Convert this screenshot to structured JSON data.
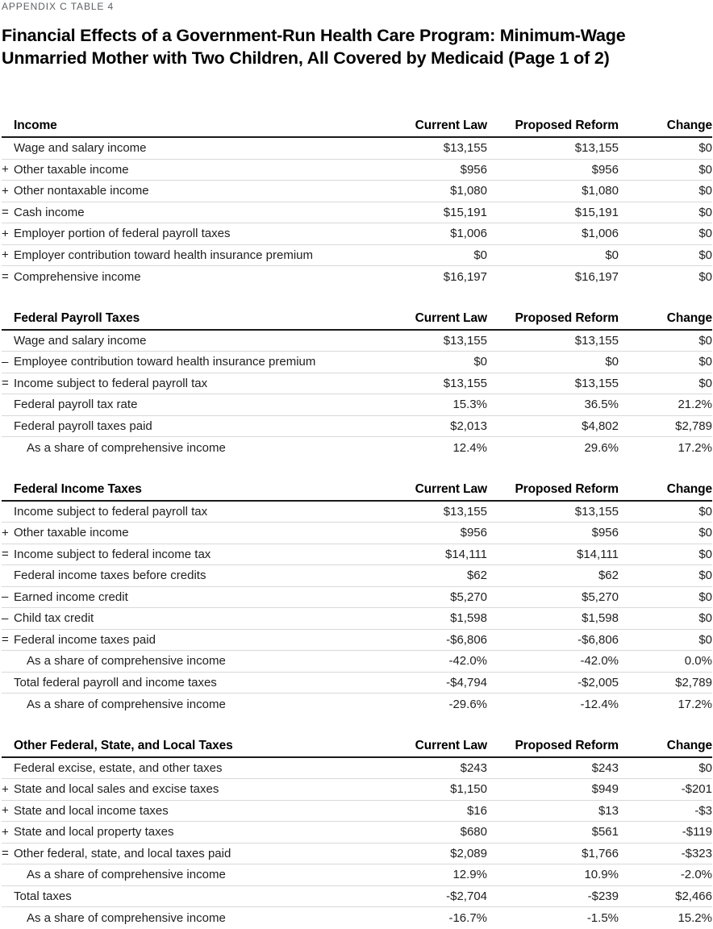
{
  "eyebrow": "APPENDIX C TABLE 4",
  "title_line1": "Financial Effects of a Government-Run Health Care Program: Minimum-Wage",
  "title_line2": "Unmarried Mother with Two Children, All Covered by Medicaid (Page 1 of 2)",
  "columns": [
    "Current Law",
    "Proposed Reform",
    "Change"
  ],
  "sections": [
    {
      "header": "Income",
      "rows": [
        {
          "prefix": "",
          "indent": 1,
          "label": "Wage and salary income",
          "values": [
            "$13,155",
            "$13,155",
            "$0"
          ]
        },
        {
          "prefix": "+",
          "indent": 1,
          "label": "Other taxable income",
          "values": [
            "$956",
            "$956",
            "$0"
          ]
        },
        {
          "prefix": "+",
          "indent": 1,
          "label": "Other nontaxable income",
          "values": [
            "$1,080",
            "$1,080",
            "$0"
          ]
        },
        {
          "prefix": "=",
          "indent": 1,
          "label": "Cash income",
          "values": [
            "$15,191",
            "$15,191",
            "$0"
          ]
        },
        {
          "prefix": "+",
          "indent": 1,
          "label": "Employer portion of federal payroll taxes",
          "values": [
            "$1,006",
            "$1,006",
            "$0"
          ]
        },
        {
          "prefix": "+",
          "indent": 1,
          "label": "Employer contribution toward health insurance premium",
          "values": [
            "$0",
            "$0",
            "$0"
          ]
        },
        {
          "prefix": "=",
          "indent": 1,
          "label": "Comprehensive income",
          "values": [
            "$16,197",
            "$16,197",
            "$0"
          ]
        }
      ]
    },
    {
      "header": "Federal Payroll Taxes",
      "rows": [
        {
          "prefix": "",
          "indent": 1,
          "label": "Wage and salary income",
          "values": [
            "$13,155",
            "$13,155",
            "$0"
          ]
        },
        {
          "prefix": "–",
          "indent": 1,
          "label": "Employee contribution toward health insurance premium",
          "values": [
            "$0",
            "$0",
            "$0"
          ]
        },
        {
          "prefix": "=",
          "indent": 1,
          "label": "Income subject to federal payroll tax",
          "values": [
            "$13,155",
            "$13,155",
            "$0"
          ]
        },
        {
          "prefix": "",
          "indent": 1,
          "label": "Federal payroll tax rate",
          "values": [
            "15.3%",
            "36.5%",
            "21.2%"
          ]
        },
        {
          "prefix": "",
          "indent": 1,
          "label": "Federal payroll taxes paid",
          "values": [
            "$2,013",
            "$4,802",
            "$2,789"
          ]
        },
        {
          "prefix": "",
          "indent": 2,
          "label": "As a share of comprehensive income",
          "values": [
            "12.4%",
            "29.6%",
            "17.2%"
          ]
        }
      ]
    },
    {
      "header": "Federal Income Taxes",
      "rows": [
        {
          "prefix": "",
          "indent": 1,
          "label": "Income subject to federal payroll tax",
          "values": [
            "$13,155",
            "$13,155",
            "$0"
          ]
        },
        {
          "prefix": "+",
          "indent": 1,
          "label": "Other taxable income",
          "values": [
            "$956",
            "$956",
            "$0"
          ]
        },
        {
          "prefix": "=",
          "indent": 1,
          "label": "Income subject to federal income tax",
          "values": [
            "$14,111",
            "$14,111",
            "$0"
          ]
        },
        {
          "prefix": "",
          "indent": 1,
          "label": "Federal income taxes before credits",
          "values": [
            "$62",
            "$62",
            "$0"
          ]
        },
        {
          "prefix": "–",
          "indent": 1,
          "label": "Earned income credit",
          "values": [
            "$5,270",
            "$5,270",
            "$0"
          ]
        },
        {
          "prefix": "–",
          "indent": 1,
          "label": "Child tax credit",
          "values": [
            "$1,598",
            "$1,598",
            "$0"
          ]
        },
        {
          "prefix": "=",
          "indent": 1,
          "label": "Federal income taxes paid",
          "values": [
            "-$6,806",
            "-$6,806",
            "$0"
          ]
        },
        {
          "prefix": "",
          "indent": 2,
          "label": "As a share of comprehensive income",
          "values": [
            "-42.0%",
            "-42.0%",
            "0.0%"
          ]
        },
        {
          "prefix": "",
          "indent": 1,
          "label": "Total federal payroll and income taxes",
          "values": [
            "-$4,794",
            "-$2,005",
            "$2,789"
          ]
        },
        {
          "prefix": "",
          "indent": 2,
          "label": "As a share of comprehensive income",
          "values": [
            "-29.6%",
            "-12.4%",
            "17.2%"
          ]
        }
      ]
    },
    {
      "header": "Other Federal, State, and Local Taxes",
      "rows": [
        {
          "prefix": "",
          "indent": 1,
          "label": "Federal excise, estate, and other taxes",
          "values": [
            "$243",
            "$243",
            "$0"
          ]
        },
        {
          "prefix": "+",
          "indent": 1,
          "label": "State and local sales and excise taxes",
          "values": [
            "$1,150",
            "$949",
            "-$201"
          ]
        },
        {
          "prefix": "+",
          "indent": 1,
          "label": "State and local income taxes",
          "values": [
            "$16",
            "$13",
            "-$3"
          ]
        },
        {
          "prefix": "+",
          "indent": 1,
          "label": "State and local property taxes",
          "values": [
            "$680",
            "$561",
            "-$119"
          ]
        },
        {
          "prefix": "=",
          "indent": 1,
          "label": "Other federal, state, and local taxes paid",
          "values": [
            "$2,089",
            "$1,766",
            "-$323"
          ]
        },
        {
          "prefix": "",
          "indent": 2,
          "label": "As a share of comprehensive income",
          "values": [
            "12.9%",
            "10.9%",
            "-2.0%"
          ]
        },
        {
          "prefix": "",
          "indent": 1,
          "label": "Total taxes",
          "values": [
            "-$2,704",
            "-$239",
            "$2,466"
          ]
        },
        {
          "prefix": "",
          "indent": 2,
          "label": "As a share of comprehensive income",
          "values": [
            "-16.7%",
            "-1.5%",
            "15.2%"
          ]
        }
      ]
    }
  ]
}
